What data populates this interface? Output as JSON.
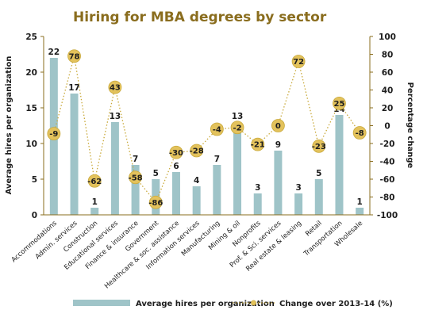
{
  "chart_data": {
    "type": "bar",
    "title": "Hiring for MBA degrees by sector",
    "categories": [
      "Accommodations",
      "Admin. services",
      "Construction",
      "Educational services",
      "Finance & insurance",
      "Government",
      "Healthcare & soc. assistance",
      "Information services",
      "Manufacturing",
      "Mining & oil",
      "Nonprofits",
      "Prof. & Sci. services",
      "Real estate & leasing",
      "Retail",
      "Transportation",
      "Wholesale"
    ],
    "series": [
      {
        "name": "Average hires per organization",
        "type": "bar",
        "axis": "left",
        "values": [
          22,
          17,
          1,
          13,
          7,
          5,
          6,
          4,
          7,
          13,
          3,
          9,
          3,
          5,
          14,
          1
        ]
      },
      {
        "name": "Change over 2013-14 (%)",
        "type": "line",
        "axis": "right",
        "values": [
          -9,
          78,
          -62,
          43,
          -58,
          -86,
          -30,
          -28,
          -4,
          -2,
          -21,
          0,
          72,
          -23,
          25,
          -8
        ]
      }
    ],
    "ylabel": "Average hires per organization",
    "ylabel_right": "Percentage change",
    "ylim": [
      0,
      25
    ],
    "ylim_right": [
      -100,
      100
    ],
    "yticks": [
      0,
      5,
      10,
      15,
      20,
      25
    ],
    "yticks_right": [
      -100,
      -80,
      -60,
      -40,
      -20,
      0,
      20,
      40,
      60,
      80,
      100
    ],
    "grid": false,
    "legend": "bottom",
    "colors": {
      "bar": "#9fc4c8",
      "line": "#c9a93a",
      "marker": "#e3c25c",
      "title": "#8a6d1e",
      "axis": "#8a6d1e"
    }
  }
}
